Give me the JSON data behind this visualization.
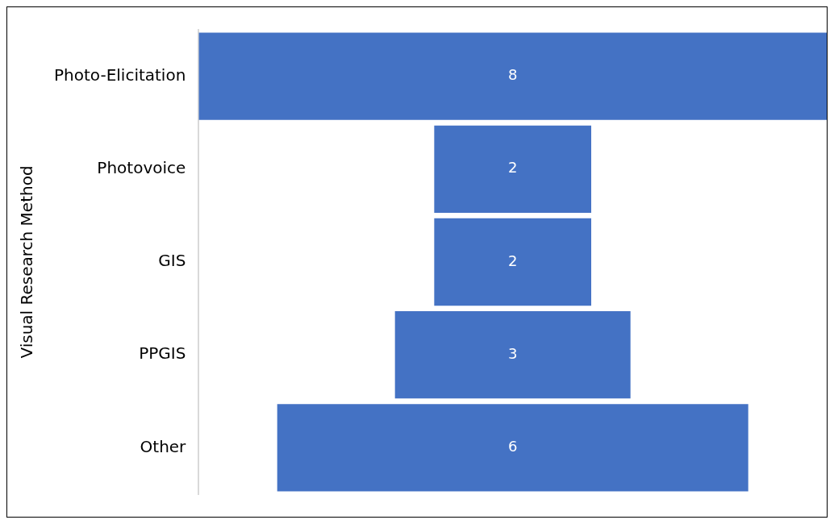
{
  "chart_data": {
    "type": "other",
    "ylabel": "Visual Research Method",
    "categories": [
      "Photo-Elicitation",
      "Photovoice",
      "GIS",
      "PPGIS",
      "Other"
    ],
    "values": [
      8,
      2,
      2,
      3,
      6
    ],
    "color": "#4472c4",
    "data_labels": true
  }
}
